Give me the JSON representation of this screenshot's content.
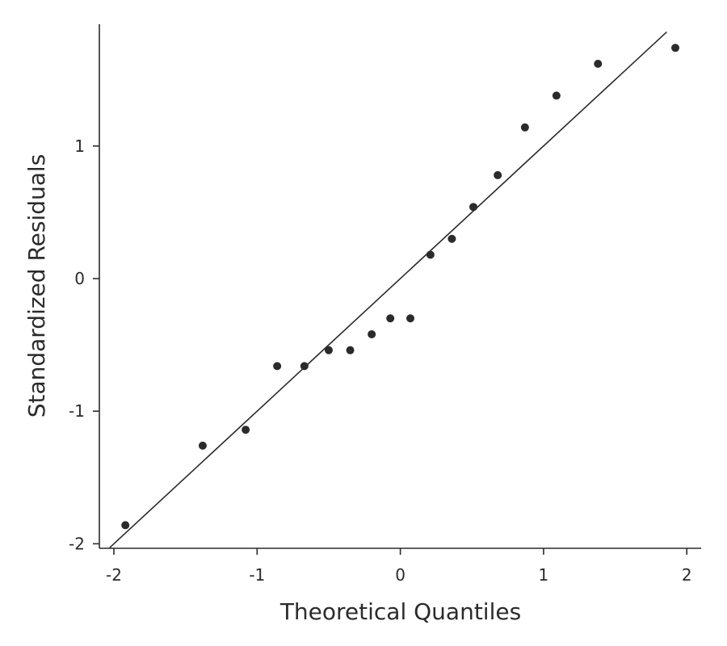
{
  "chart_data": {
    "type": "scatter",
    "title": "",
    "xlabel": "Theoretical Quantiles",
    "ylabel": "Standardized Residuals",
    "xlim": [
      -2.1,
      2.1
    ],
    "ylim": [
      -2.02,
      1.92
    ],
    "x_ticks": [
      -2,
      -1,
      0,
      1,
      2
    ],
    "y_ticks": [
      -2,
      -1,
      0,
      1
    ],
    "x_tick_labels": [
      "-2",
      "-1",
      "0",
      "1",
      "2"
    ],
    "y_tick_labels": [
      "-2",
      "-1",
      "0",
      "1"
    ],
    "grid": false,
    "reference_line": {
      "slope": 1,
      "intercept": 0
    },
    "points": [
      {
        "x": -1.92,
        "y": -1.86
      },
      {
        "x": -1.38,
        "y": -1.26
      },
      {
        "x": -1.08,
        "y": -1.14
      },
      {
        "x": -0.86,
        "y": -0.66
      },
      {
        "x": -0.67,
        "y": -0.66
      },
      {
        "x": -0.5,
        "y": -0.54
      },
      {
        "x": -0.35,
        "y": -0.54
      },
      {
        "x": -0.2,
        "y": -0.42
      },
      {
        "x": -0.07,
        "y": -0.3
      },
      {
        "x": 0.07,
        "y": -0.3
      },
      {
        "x": 0.21,
        "y": 0.18
      },
      {
        "x": 0.36,
        "y": 0.3
      },
      {
        "x": 0.51,
        "y": 0.54
      },
      {
        "x": 0.68,
        "y": 0.78
      },
      {
        "x": 0.87,
        "y": 1.14
      },
      {
        "x": 1.09,
        "y": 1.38
      },
      {
        "x": 1.38,
        "y": 1.62
      },
      {
        "x": 1.92,
        "y": 1.74
      }
    ]
  }
}
